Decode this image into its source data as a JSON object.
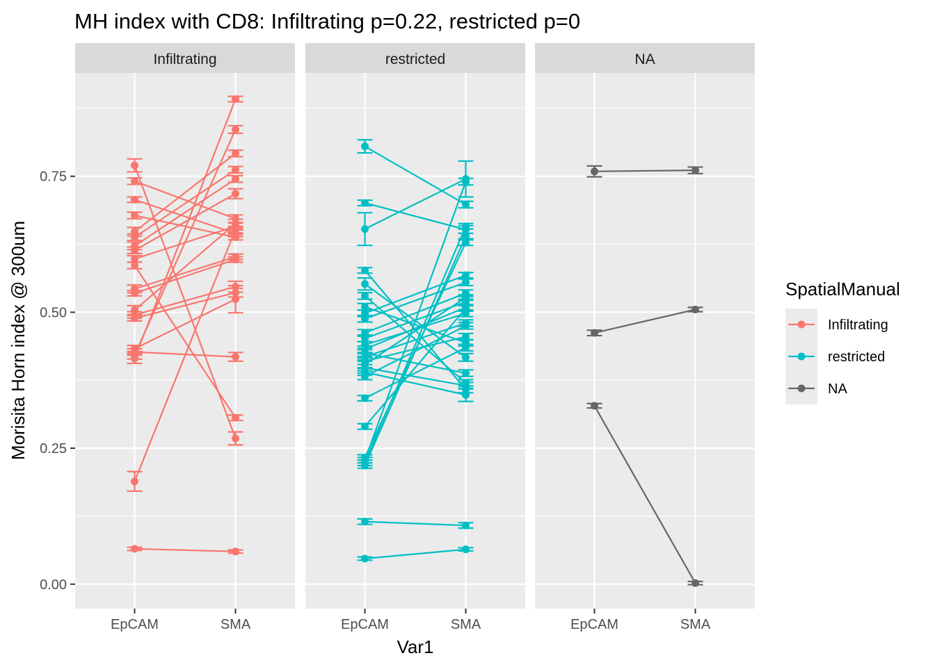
{
  "chart_data": {
    "type": "line",
    "title": "MH index with CD8: Infiltrating p=0.22, restricted p=0",
    "xlabel": "Var1",
    "ylabel": "Morisita Horn index @ 300um",
    "categories": [
      "EpCAM",
      "SMA"
    ],
    "ylim": [
      -0.045,
      0.94
    ],
    "yticks": [
      0.0,
      0.25,
      0.5,
      0.75
    ],
    "ytick_labels": [
      "0.00",
      "0.25",
      "0.50",
      "0.75"
    ],
    "grid": true,
    "legend": {
      "title": "SpatialManual",
      "position": "right",
      "entries": [
        {
          "label": "Infiltrating",
          "color": "#F8766D"
        },
        {
          "label": "restricted",
          "color": "#00BFC4"
        },
        {
          "label": "NA",
          "color": "#666666"
        }
      ]
    },
    "panels": [
      {
        "label": "Infiltrating",
        "color": "#F8766D",
        "pairs": [
          {
            "epcam": 0.77,
            "epcam_err": 0.012,
            "sma": 0.268,
            "sma_err": 0.012
          },
          {
            "epcam": 0.741,
            "epcam_err": 0.006,
            "sma": 0.672,
            "sma_err": 0.007
          },
          {
            "epcam": 0.707,
            "epcam_err": 0.005,
            "sma": 0.645,
            "sma_err": 0.006
          },
          {
            "epcam": 0.678,
            "epcam_err": 0.006,
            "sma": 0.638,
            "sma_err": 0.005
          },
          {
            "epcam": 0.648,
            "epcam_err": 0.008,
            "sma": 0.792,
            "sma_err": 0.006
          },
          {
            "epcam": 0.638,
            "epcam_err": 0.006,
            "sma": 0.762,
            "sma_err": 0.006
          },
          {
            "epcam": 0.622,
            "epcam_err": 0.007,
            "sma": 0.745,
            "sma_err": 0.006
          },
          {
            "epcam": 0.614,
            "epcam_err": 0.006,
            "sma": 0.718,
            "sma_err": 0.009
          },
          {
            "epcam": 0.598,
            "epcam_err": 0.006,
            "sma": 0.658,
            "sma_err": 0.006
          },
          {
            "epcam": 0.586,
            "epcam_err": 0.006,
            "sma": 0.306,
            "sma_err": 0.005
          },
          {
            "epcam": 0.543,
            "epcam_err": 0.007,
            "sma": 0.602,
            "sma_err": 0.005
          },
          {
            "epcam": 0.535,
            "epcam_err": 0.005,
            "sma": 0.597,
            "sma_err": 0.005
          },
          {
            "epcam": 0.504,
            "epcam_err": 0.008,
            "sma": 0.663,
            "sma_err": 0.008
          },
          {
            "epcam": 0.495,
            "epcam_err": 0.006,
            "sma": 0.547,
            "sma_err": 0.01
          },
          {
            "epcam": 0.489,
            "epcam_err": 0.005,
            "sma": 0.536,
            "sma_err": 0.008
          },
          {
            "epcam": 0.433,
            "epcam_err": 0.006,
            "sma": 0.524,
            "sma_err": 0.025
          },
          {
            "epcam": 0.427,
            "epcam_err": 0.006,
            "sma": 0.418,
            "sma_err": 0.008
          },
          {
            "epcam": 0.421,
            "epcam_err": 0.007,
            "sma": 0.836,
            "sma_err": 0.007
          },
          {
            "epcam": 0.415,
            "epcam_err": 0.009,
            "sma": 0.892,
            "sma_err": 0.005
          },
          {
            "epcam": 0.189,
            "epcam_err": 0.018,
            "sma": 0.652,
            "sma_err": 0.006
          },
          {
            "epcam": 0.065,
            "epcam_err": 0.003,
            "sma": 0.06,
            "sma_err": 0.003
          }
        ]
      },
      {
        "label": "restricted",
        "color": "#00BFC4",
        "pairs": [
          {
            "epcam": 0.805,
            "epcam_err": 0.012,
            "sma": 0.698,
            "sma_err": 0.006
          },
          {
            "epcam": 0.701,
            "epcam_err": 0.005,
            "sma": 0.652,
            "sma_err": 0.007
          },
          {
            "epcam": 0.653,
            "epcam_err": 0.03,
            "sma": 0.745,
            "sma_err": 0.033
          },
          {
            "epcam": 0.577,
            "epcam_err": 0.005,
            "sma": 0.358,
            "sma_err": 0.006
          },
          {
            "epcam": 0.552,
            "epcam_err": 0.011,
            "sma": 0.417,
            "sma_err": 0.007
          },
          {
            "epcam": 0.53,
            "epcam_err": 0.006,
            "sma": 0.37,
            "sma_err": 0.006
          },
          {
            "epcam": 0.51,
            "epcam_err": 0.006,
            "sma": 0.444,
            "sma_err": 0.006
          },
          {
            "epcam": 0.498,
            "epcam_err": 0.006,
            "sma": 0.568,
            "sma_err": 0.005
          },
          {
            "epcam": 0.488,
            "epcam_err": 0.006,
            "sma": 0.555,
            "sma_err": 0.006
          },
          {
            "epcam": 0.462,
            "epcam_err": 0.006,
            "sma": 0.535,
            "sma_err": 0.006
          },
          {
            "epcam": 0.452,
            "epcam_err": 0.006,
            "sma": 0.519,
            "sma_err": 0.005
          },
          {
            "epcam": 0.44,
            "epcam_err": 0.006,
            "sma": 0.498,
            "sma_err": 0.006
          },
          {
            "epcam": 0.432,
            "epcam_err": 0.006,
            "sma": 0.509,
            "sma_err": 0.005
          },
          {
            "epcam": 0.425,
            "epcam_err": 0.006,
            "sma": 0.388,
            "sma_err": 0.006
          },
          {
            "epcam": 0.418,
            "epcam_err": 0.006,
            "sma": 0.48,
            "sma_err": 0.006
          },
          {
            "epcam": 0.41,
            "epcam_err": 0.006,
            "sma": 0.455,
            "sma_err": 0.006
          },
          {
            "epcam": 0.404,
            "epcam_err": 0.006,
            "sma": 0.527,
            "sma_err": 0.005
          },
          {
            "epcam": 0.398,
            "epcam_err": 0.006,
            "sma": 0.365,
            "sma_err": 0.006
          },
          {
            "epcam": 0.39,
            "epcam_err": 0.006,
            "sma": 0.348,
            "sma_err": 0.012
          },
          {
            "epcam": 0.382,
            "epcam_err": 0.006,
            "sma": 0.475,
            "sma_err": 0.006
          },
          {
            "epcam": 0.342,
            "epcam_err": 0.005,
            "sma": 0.435,
            "sma_err": 0.006
          },
          {
            "epcam": 0.29,
            "epcam_err": 0.005,
            "sma": 0.507,
            "sma_err": 0.005
          },
          {
            "epcam": 0.233,
            "epcam_err": 0.005,
            "sma": 0.628,
            "sma_err": 0.005
          },
          {
            "epcam": 0.228,
            "epcam_err": 0.005,
            "sma": 0.74,
            "sma_err": 0.006
          },
          {
            "epcam": 0.223,
            "epcam_err": 0.005,
            "sma": 0.658,
            "sma_err": 0.005
          },
          {
            "epcam": 0.218,
            "epcam_err": 0.005,
            "sma": 0.64,
            "sma_err": 0.005
          },
          {
            "epcam": 0.115,
            "epcam_err": 0.005,
            "sma": 0.108,
            "sma_err": 0.005
          },
          {
            "epcam": 0.047,
            "epcam_err": 0.003,
            "sma": 0.064,
            "sma_err": 0.003
          }
        ]
      },
      {
        "label": "NA",
        "color": "#666666",
        "pairs": [
          {
            "epcam": 0.759,
            "epcam_err": 0.01,
            "sma": 0.761,
            "sma_err": 0.006
          },
          {
            "epcam": 0.462,
            "epcam_err": 0.005,
            "sma": 0.505,
            "sma_err": 0.004
          },
          {
            "epcam": 0.328,
            "epcam_err": 0.004,
            "sma": 0.002,
            "sma_err": 0.003
          }
        ]
      }
    ]
  }
}
